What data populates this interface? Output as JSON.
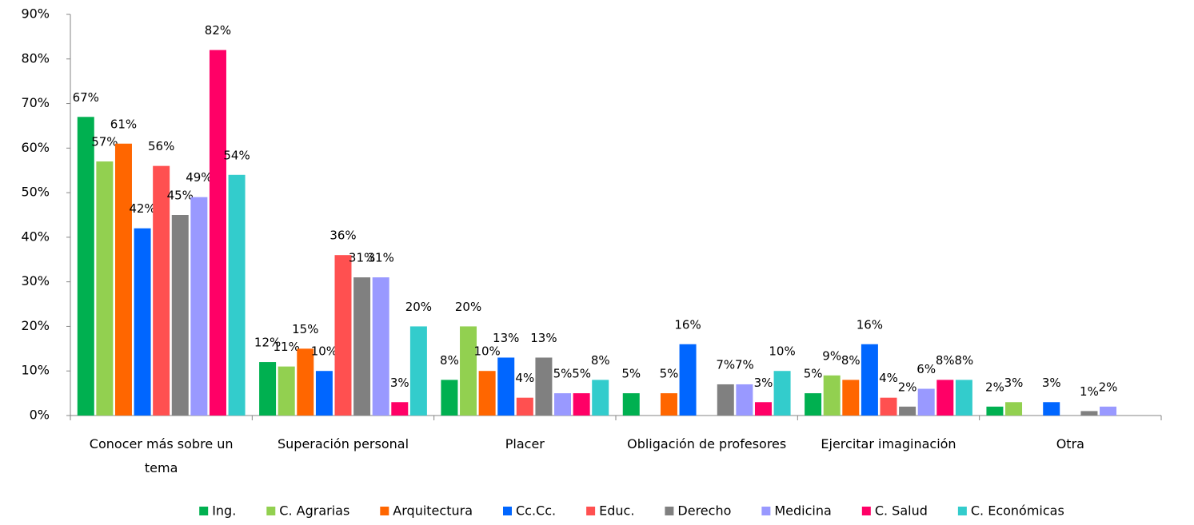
{
  "chart_data": {
    "type": "bar",
    "categories": [
      "Conocer más sobre un tema",
      "Superación personal",
      "Placer",
      "Obligación de profesores",
      "Ejercitar imaginación",
      "Otra"
    ],
    "series": [
      {
        "name": "Ing.",
        "color": "#00b050",
        "values": [
          67,
          12,
          8,
          5,
          5,
          2
        ],
        "value_labels": [
          "67%",
          "12%",
          "8%",
          "5%",
          "5%",
          "2%"
        ]
      },
      {
        "name": "C. Agrarias",
        "color": "#92d050",
        "values": [
          57,
          11,
          20,
          null,
          9,
          3
        ],
        "value_labels": [
          "57%",
          "11%",
          "20%",
          null,
          "9%",
          "3%"
        ]
      },
      {
        "name": "Arquitectura",
        "color": "#ff6600",
        "values": [
          61,
          15,
          10,
          5,
          8,
          null
        ],
        "value_labels": [
          "61%",
          "15%",
          "10%",
          "5%",
          "8%",
          null
        ]
      },
      {
        "name": "Cc.Cc.",
        "color": "#0066ff",
        "values": [
          42,
          10,
          13,
          16,
          16,
          3
        ],
        "value_labels": [
          "42%",
          "10%",
          "13%",
          "16%",
          "16%",
          "3%"
        ]
      },
      {
        "name": "Educ.",
        "color": "#ff5050",
        "values": [
          56,
          36,
          4,
          null,
          4,
          null
        ],
        "value_labels": [
          "56%",
          "36%",
          "4%",
          null,
          "4%",
          null
        ]
      },
      {
        "name": "Derecho",
        "color": "#808080",
        "values": [
          45,
          31,
          13,
          7,
          2,
          1
        ],
        "value_labels": [
          "45%",
          "31%",
          "13%",
          "7%",
          "2%",
          "1%"
        ]
      },
      {
        "name": "Medicina",
        "color": "#9999ff",
        "values": [
          49,
          31,
          5,
          7,
          6,
          2
        ],
        "value_labels": [
          "49%",
          "31%",
          "5%",
          "7%",
          "6%",
          "2%"
        ]
      },
      {
        "name": "C. Salud",
        "color": "#ff0066",
        "values": [
          82,
          3,
          5,
          3,
          8,
          null
        ],
        "value_labels": [
          "82%",
          "3%",
          "5%",
          "3%",
          "8%",
          null
        ]
      },
      {
        "name": "C. Económicas",
        "color": "#33cccc",
        "values": [
          54,
          20,
          8,
          10,
          8,
          null
        ],
        "value_labels": [
          "54%",
          "20%",
          "8%",
          "10%",
          "8%",
          null
        ]
      }
    ],
    "ylim": [
      0,
      90
    ],
    "yticks": [
      {
        "value": 0,
        "label": "0%"
      },
      {
        "value": 10,
        "label": "10%"
      },
      {
        "value": 20,
        "label": "20%"
      },
      {
        "value": 30,
        "label": "30%"
      },
      {
        "value": 40,
        "label": "40%"
      },
      {
        "value": 50,
        "label": "50%"
      },
      {
        "value": 60,
        "label": "60%"
      },
      {
        "value": 70,
        "label": "70%"
      },
      {
        "value": 80,
        "label": "80%"
      },
      {
        "value": 90,
        "label": "90%"
      }
    ],
    "grid": false,
    "legend": "bottom"
  }
}
